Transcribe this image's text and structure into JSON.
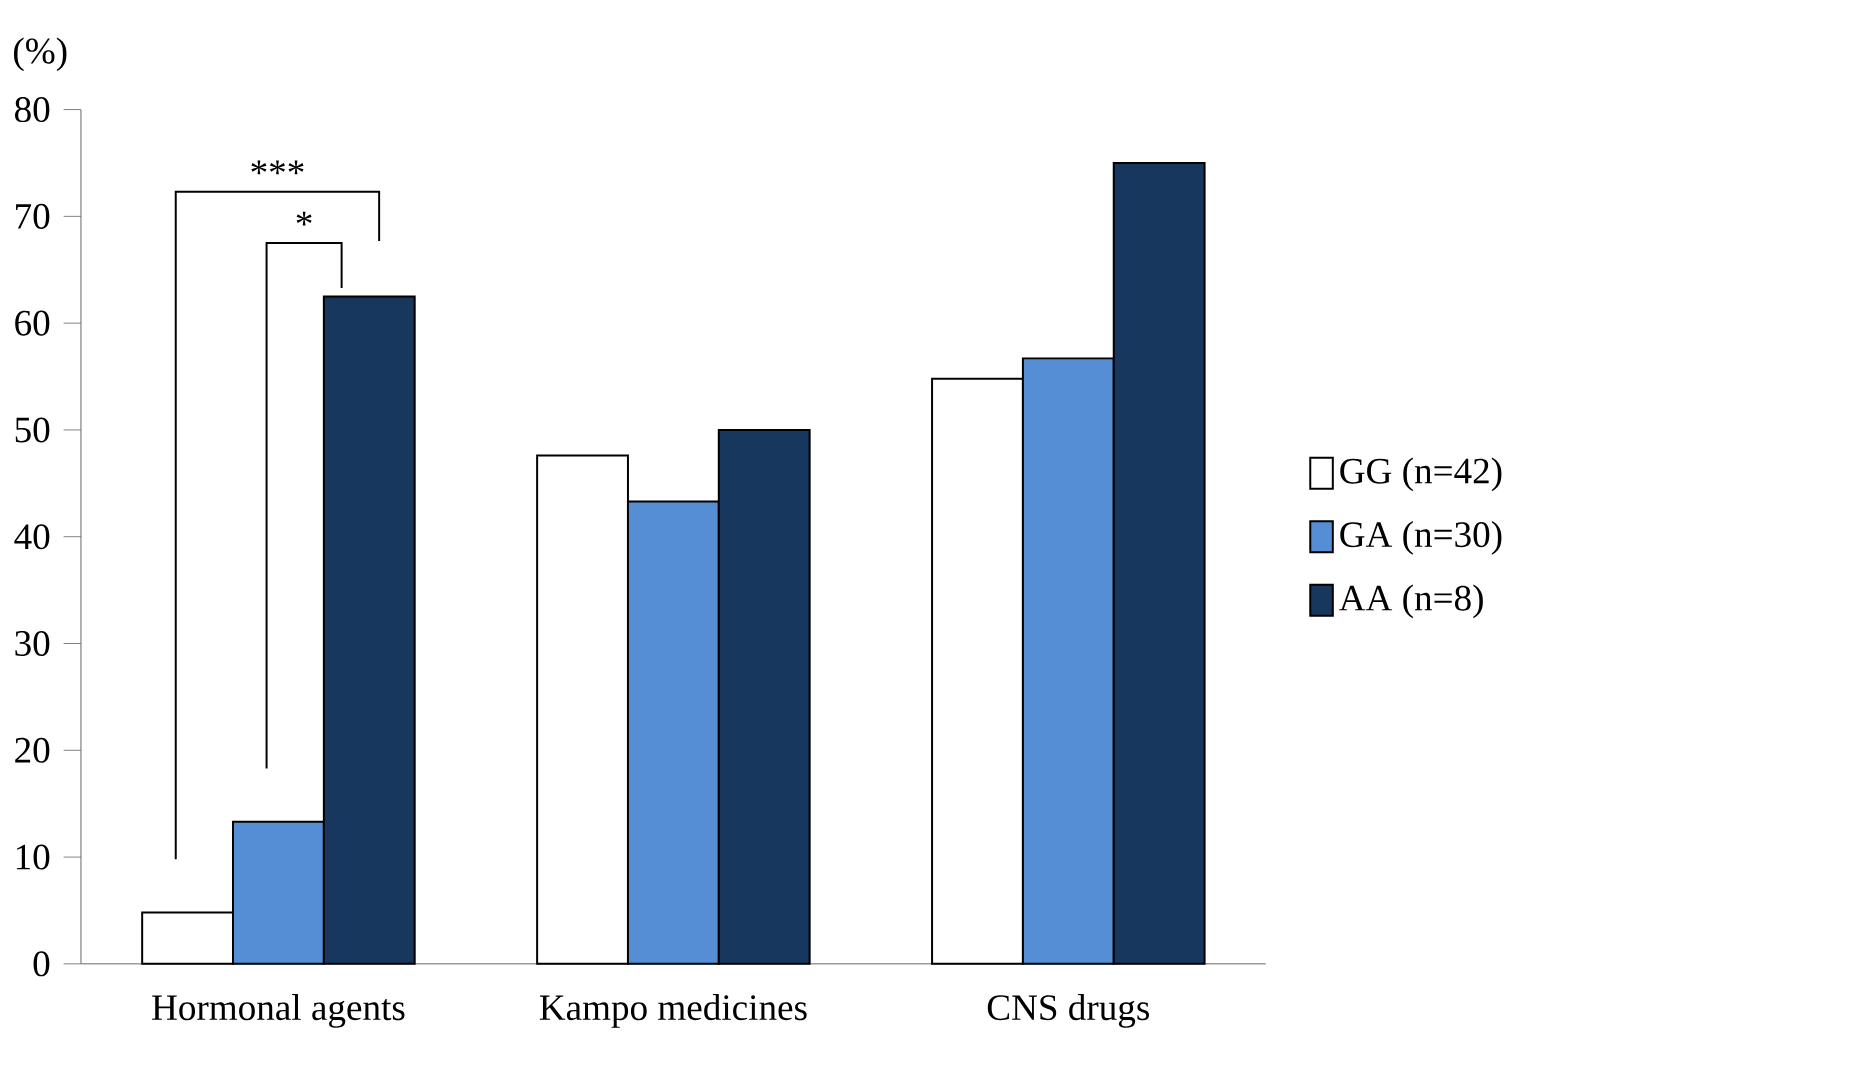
{
  "chart_data": {
    "type": "bar",
    "ylabel": "(%)",
    "categories": [
      "Hormonal agents",
      "Kampo medicines",
      "CNS drugs"
    ],
    "series": [
      {
        "name": "GG (n=42)",
        "color": "#ffffff",
        "values": [
          4.8,
          47.6,
          54.8
        ]
      },
      {
        "name": "GA (n=30)",
        "color": "#558ed5",
        "values": [
          13.3,
          43.3,
          56.7
        ]
      },
      {
        "name": "AA (n=8)",
        "color": "#17375e",
        "values": [
          62.5,
          50.0,
          75.0
        ]
      }
    ],
    "ylim": [
      0,
      80
    ],
    "yticks": [
      0,
      10,
      20,
      30,
      40,
      50,
      60,
      70,
      80
    ],
    "annotations": [
      "***",
      "*"
    ],
    "grid": false,
    "legend": "right"
  }
}
